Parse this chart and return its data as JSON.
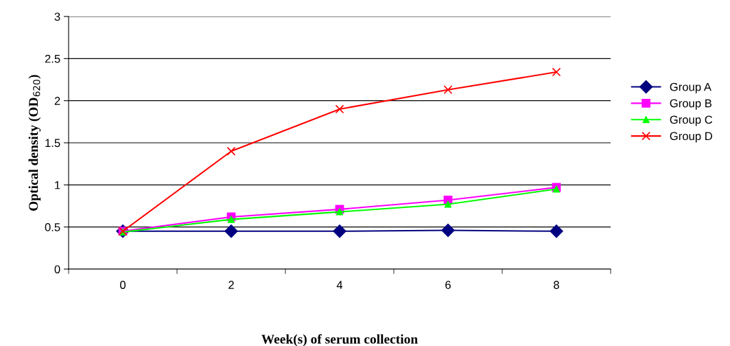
{
  "chart_data": {
    "type": "line",
    "xlabel": "Week(s) of serum collection",
    "ylabel": "Optical density (OD$_{620}$)",
    "categories": [
      "0",
      "2",
      "4",
      "6",
      "8"
    ],
    "series": [
      {
        "name": "Group A",
        "color": "#000080",
        "marker": "diamond",
        "values": [
          0.45,
          0.45,
          0.45,
          0.46,
          0.45
        ]
      },
      {
        "name": "Group B",
        "color": "#ff00ff",
        "marker": "square",
        "values": [
          0.45,
          0.62,
          0.71,
          0.82,
          0.97
        ]
      },
      {
        "name": "Group C",
        "color": "#00ff00",
        "marker": "triangle",
        "values": [
          0.44,
          0.59,
          0.68,
          0.77,
          0.95
        ]
      },
      {
        "name": "Group D",
        "color": "#ff0000",
        "marker": "cross",
        "values": [
          0.45,
          1.4,
          1.9,
          2.13,
          2.34
        ]
      }
    ],
    "ylim": [
      0,
      3
    ],
    "yticks": [
      0,
      0.5,
      1,
      1.5,
      2,
      2.5,
      3
    ],
    "grid": "y",
    "legend": "right"
  }
}
